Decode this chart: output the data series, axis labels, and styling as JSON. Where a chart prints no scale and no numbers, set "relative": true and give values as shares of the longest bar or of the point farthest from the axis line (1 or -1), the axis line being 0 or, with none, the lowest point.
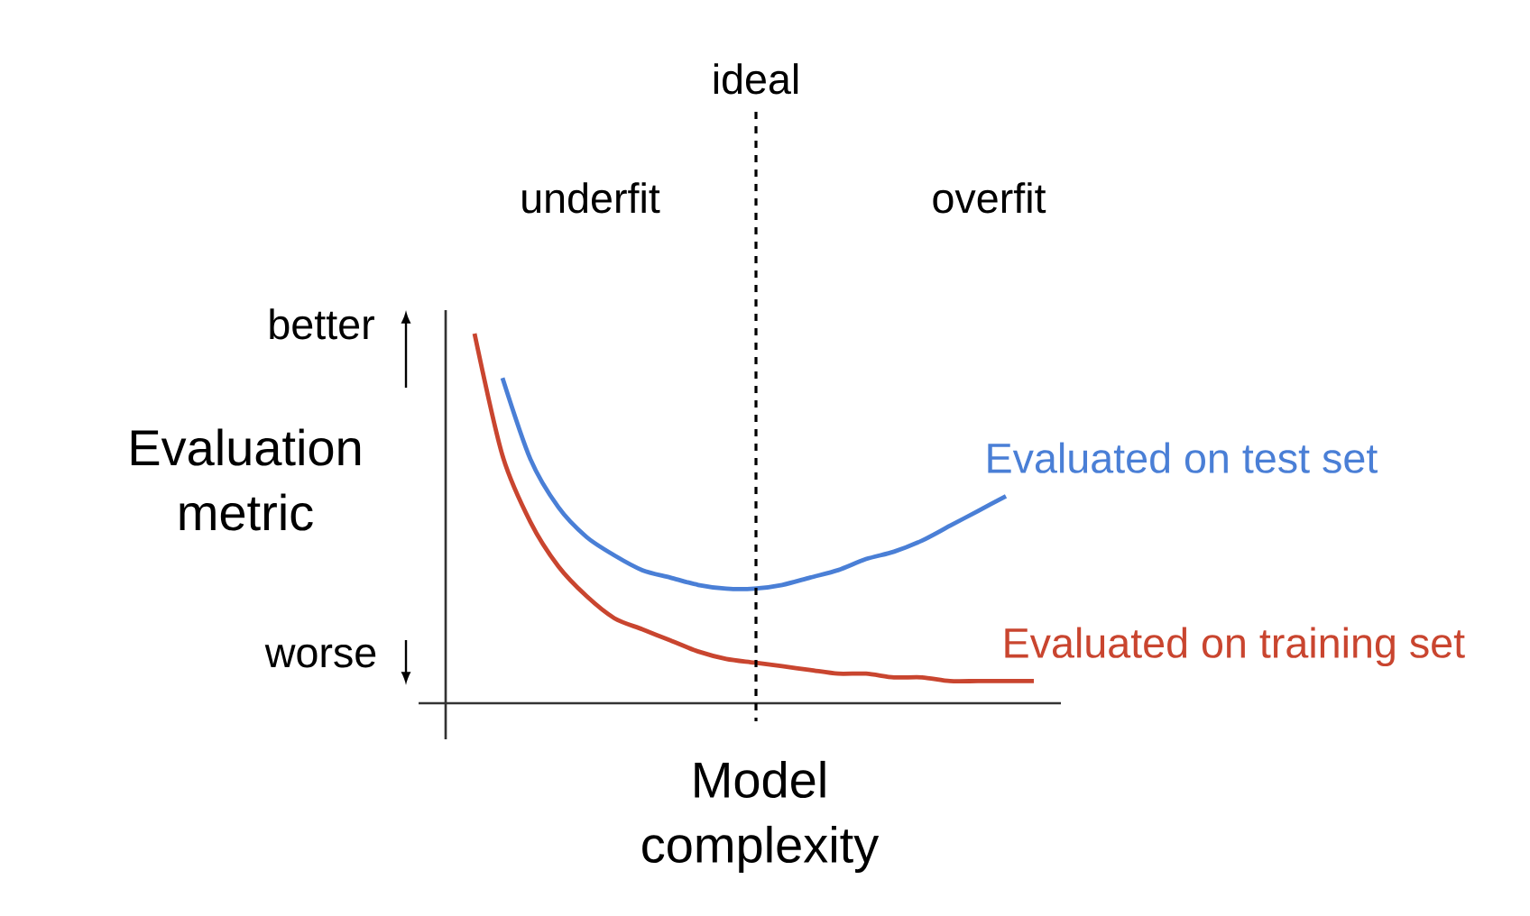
{
  "chart_data": {
    "type": "line",
    "relative": true,
    "xlabel": "Model complexity",
    "ylabel": "Evaluation metric",
    "categories": [
      null,
      null,
      null,
      null,
      null,
      null,
      null,
      null,
      null,
      null,
      null,
      null,
      null,
      null,
      null,
      null,
      null,
      null,
      null,
      null,
      null
    ],
    "series": [
      {
        "name": "Evaluated on test set",
        "color": "#4a7fd6",
        "values": [
          null,
          0.88,
          0.66,
          0.53,
          0.45,
          0.4,
          0.36,
          0.34,
          0.32,
          0.31,
          0.31,
          0.32,
          0.34,
          0.36,
          0.39,
          0.41,
          0.44,
          0.48,
          0.52,
          0.56,
          null
        ]
      },
      {
        "name": "Evaluated on training set",
        "color": "#c9452f",
        "values": [
          1.0,
          0.67,
          0.49,
          0.37,
          0.29,
          0.23,
          0.2,
          0.17,
          0.14,
          0.12,
          0.11,
          0.1,
          0.09,
          0.08,
          0.08,
          0.07,
          0.07,
          0.06,
          0.06,
          0.06,
          0.06
        ]
      }
    ],
    "annotations": [
      "ideal",
      "underfit",
      "overfit",
      "better",
      "worse"
    ]
  }
}
